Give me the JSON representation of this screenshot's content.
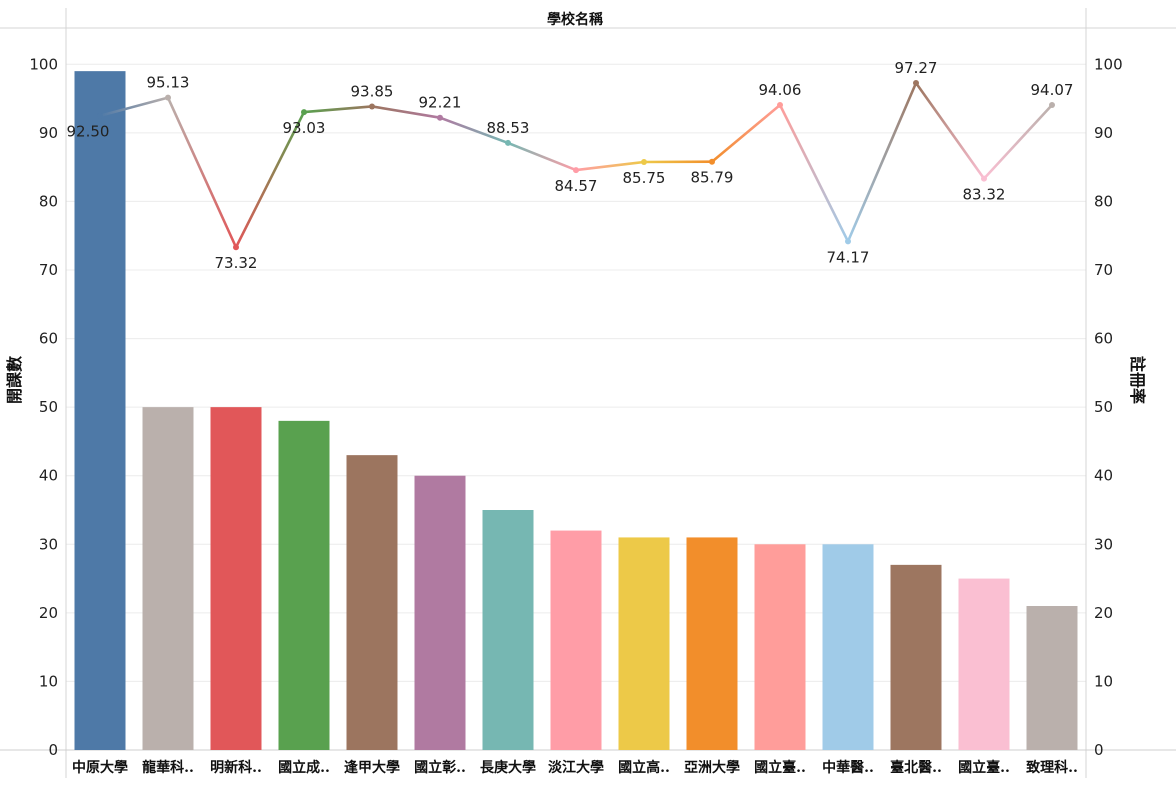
{
  "chart_data": {
    "type": "bar+line",
    "title": "學校名稱",
    "ylabel_left": "開課數",
    "ylabel_right": "註冊率",
    "ylim_left": [
      0,
      105
    ],
    "ylim_right": [
      0,
      105
    ],
    "yticks_left": [
      0,
      10,
      20,
      30,
      40,
      50,
      60,
      70,
      80,
      90,
      100
    ],
    "yticks_right": [
      0,
      10,
      20,
      30,
      40,
      50,
      60,
      70,
      80,
      90,
      100
    ],
    "grid": true,
    "categories": [
      "中原大學",
      "龍華科..",
      "明新科..",
      "國立成..",
      "逢甲大學",
      "國立彰..",
      "長庚大學",
      "淡江大學",
      "國立高..",
      "亞洲大學",
      "國立臺..",
      "中華醫..",
      "臺北醫..",
      "國立臺..",
      "致理科.."
    ],
    "series": [
      {
        "type": "bar",
        "axis": "left",
        "values": [
          99,
          50,
          50,
          48,
          43,
          40,
          35,
          32,
          31,
          31,
          30,
          30,
          27,
          25,
          21
        ]
      },
      {
        "type": "line",
        "axis": "right",
        "values": [
          92.5,
          95.13,
          73.32,
          93.03,
          93.85,
          92.21,
          88.53,
          84.57,
          85.75,
          85.79,
          94.06,
          74.17,
          97.27,
          83.32,
          94.07
        ],
        "labels": [
          "92.50",
          "95.13",
          "73.32",
          "93.03",
          "93.85",
          "92.21",
          "88.53",
          "84.57",
          "85.75",
          "85.79",
          "94.06",
          "74.17",
          "97.27",
          "83.32",
          "94.07"
        ]
      }
    ],
    "colors": [
      "#4e79a7",
      "#bab0ac",
      "#e15759",
      "#59a14f",
      "#9c755f",
      "#b07aa1",
      "#76b7b2",
      "#ff9da7",
      "#edc948",
      "#f28e2b",
      "#ff9d9a",
      "#a0cbe8",
      "#9d7660",
      "#fabfd2",
      "#bab0ac"
    ]
  }
}
